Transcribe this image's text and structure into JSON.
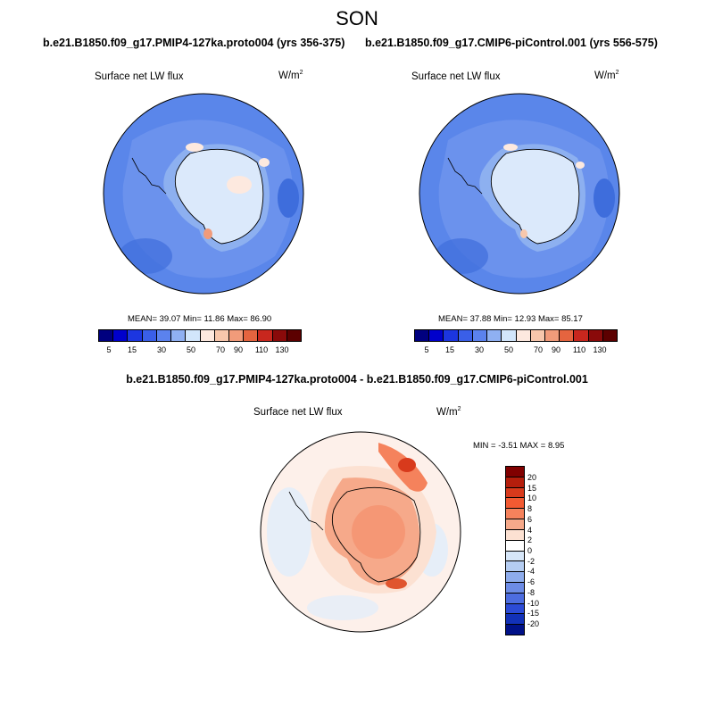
{
  "title": "SON",
  "colors": {
    "abs_palette": [
      "#00007f",
      "#0000cc",
      "#1c36e0",
      "#3a5fe8",
      "#5b82ee",
      "#8fb0f2",
      "#d2e6fb",
      "#fde9df",
      "#f7c7ac",
      "#f19b7a",
      "#e5643f",
      "#c8271e",
      "#8a0a0a",
      "#5c0000"
    ],
    "diff_palette": [
      "#800000",
      "#b51e0c",
      "#d83a1c",
      "#f25a32",
      "#f5825c",
      "#f6a98a",
      "#fce1d2",
      "#ffffff",
      "#d6e6f8",
      "#b5cdf2",
      "#8eacec",
      "#6d8ce6",
      "#4d6de0",
      "#2c4bd6",
      "#1231b8",
      "#001188",
      "#00006a"
    ],
    "ocean": "#4a7be6",
    "ice": "#dbe9fb"
  },
  "panels": [
    {
      "case": "b.e21.B1850.f09_g17.PMIP4-127ka.proto004 (yrs 356-375)",
      "var": "Surface net LW flux",
      "unit": "W/m",
      "unit_sup": "2",
      "stats": "MEAN=  39.07  Min=  11.86  Max=  86.90",
      "ticks": [
        "5",
        "15",
        "30",
        "50",
        "70",
        "90",
        "110",
        "130"
      ]
    },
    {
      "case": "b.e21.B1850.f09_g17.CMIP6-piControl.001 (yrs 556-575)",
      "var": "Surface net LW flux",
      "unit": "W/m",
      "unit_sup": "2",
      "stats": "MEAN=  37.88  Min=  12.93  Max=  85.17",
      "ticks": [
        "5",
        "15",
        "30",
        "50",
        "70",
        "90",
        "110",
        "130"
      ]
    }
  ],
  "diff": {
    "case": "b.e21.B1850.f09_g17.PMIP4-127ka.proto004 - b.e21.B1850.f09_g17.CMIP6-piControl.001",
    "var": "Surface net LW flux",
    "unit": "W/m",
    "unit_sup": "2",
    "stats": "MIN =  -3.51 MAX =   8.95",
    "ticks": [
      "20",
      "15",
      "10",
      "8",
      "6",
      "4",
      "2",
      "0",
      "-2",
      "-4",
      "-6",
      "-8",
      "-10",
      "-15",
      "-20"
    ]
  }
}
